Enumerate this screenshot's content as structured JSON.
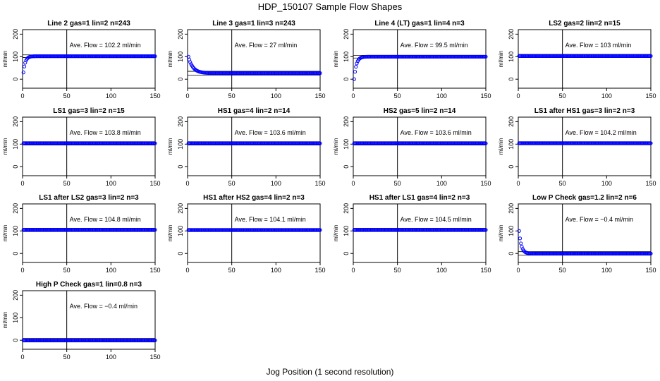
{
  "figure": {
    "title": "HDP_150107  Sample Flow Shapes",
    "xlabel": "Jog Position (1 second resolution)"
  },
  "chart_data": [
    {
      "type": "scatter",
      "title": "Line 2 gas=1 lin=2 n=243",
      "ylabel": "ml/min",
      "xlim": [
        0,
        150
      ],
      "ylim": [
        -40,
        220
      ],
      "xticks": [
        0,
        50,
        100,
        150
      ],
      "yticks": [
        0,
        100,
        200
      ],
      "vline": 50,
      "hlines": [
        96,
        108
      ],
      "annotation": "Ave. Flow = 102.2  ml/min",
      "shape": "ramp",
      "start": 30,
      "plateau": 102,
      "tau": 2.2,
      "n": 150,
      "color": "#0000ff"
    },
    {
      "type": "scatter",
      "title": "Line 3 gas=1 lin=3 n=243",
      "ylabel": "ml/min",
      "xlim": [
        0,
        150
      ],
      "ylim": [
        -40,
        220
      ],
      "xticks": [
        0,
        50,
        100,
        150
      ],
      "yticks": [
        0,
        100,
        200
      ],
      "vline": 50,
      "hlines": [
        18,
        35
      ],
      "annotation": "Ave. Flow = 27  ml/min",
      "shape": "decay",
      "start": 100,
      "plateau": 27,
      "tau": 5,
      "n": 150,
      "color": "#0000ff"
    },
    {
      "type": "scatter",
      "title": "Line 4 (LT) gas=1 lin=4 n=3",
      "ylabel": "ml/min",
      "xlim": [
        0,
        150
      ],
      "ylim": [
        -40,
        220
      ],
      "xticks": [
        0,
        50,
        100,
        150
      ],
      "yticks": [
        0,
        100,
        200
      ],
      "vline": 50,
      "hlines": [
        94,
        106
      ],
      "annotation": "Ave. Flow = 99.5  ml/min",
      "shape": "ramp",
      "start": 0,
      "plateau": 100,
      "tau": 2.5,
      "n": 150,
      "color": "#0000ff"
    },
    {
      "type": "scatter",
      "title": "LS2 gas=2 lin=2 n=15",
      "ylabel": "ml/min",
      "xlim": [
        0,
        150
      ],
      "ylim": [
        -40,
        220
      ],
      "xticks": [
        0,
        50,
        100,
        150
      ],
      "yticks": [
        0,
        100,
        200
      ],
      "vline": 50,
      "hlines": [
        96,
        110
      ],
      "annotation": "Ave. Flow = 103  ml/min",
      "shape": "flat",
      "plateau": 103,
      "n": 150,
      "color": "#0000ff"
    },
    {
      "type": "scatter",
      "title": "LS1 gas=3 lin=2 n=15",
      "ylabel": "ml/min",
      "xlim": [
        0,
        150
      ],
      "ylim": [
        -40,
        220
      ],
      "xticks": [
        0,
        50,
        100,
        150
      ],
      "yticks": [
        0,
        100,
        200
      ],
      "vline": 50,
      "hlines": [
        96,
        111
      ],
      "annotation": "Ave. Flow = 103.8  ml/min",
      "shape": "flat",
      "plateau": 103.8,
      "n": 150,
      "color": "#0000ff"
    },
    {
      "type": "scatter",
      "title": "HS1 gas=4 lin=2 n=14",
      "ylabel": "ml/min",
      "xlim": [
        0,
        150
      ],
      "ylim": [
        -40,
        220
      ],
      "xticks": [
        0,
        50,
        100,
        150
      ],
      "yticks": [
        0,
        100,
        200
      ],
      "vline": 50,
      "hlines": [
        96,
        111
      ],
      "annotation": "Ave. Flow = 103.6  ml/min",
      "shape": "flat",
      "plateau": 103.6,
      "n": 150,
      "color": "#0000ff"
    },
    {
      "type": "scatter",
      "title": "HS2 gas=5 lin=2 n=14",
      "ylabel": "ml/min",
      "xlim": [
        0,
        150
      ],
      "ylim": [
        -40,
        220
      ],
      "xticks": [
        0,
        50,
        100,
        150
      ],
      "yticks": [
        0,
        100,
        200
      ],
      "vline": 50,
      "hlines": [
        96,
        111
      ],
      "annotation": "Ave. Flow = 103.6  ml/min",
      "shape": "flat",
      "plateau": 103.6,
      "n": 150,
      "color": "#0000ff"
    },
    {
      "type": "scatter",
      "title": "LS1 after HS1 gas=3 lin=2 n=3",
      "ylabel": "ml/min",
      "xlim": [
        0,
        150
      ],
      "ylim": [
        -40,
        220
      ],
      "xticks": [
        0,
        50,
        100,
        150
      ],
      "yticks": [
        0,
        100,
        200
      ],
      "vline": 50,
      "hlines": [
        97,
        111
      ],
      "annotation": "Ave. Flow = 104.2  ml/min",
      "shape": "flat",
      "plateau": 104.2,
      "n": 150,
      "color": "#0000ff"
    },
    {
      "type": "scatter",
      "title": "LS1 after LS2 gas=3 lin=2 n=3",
      "ylabel": "ml/min",
      "xlim": [
        0,
        150
      ],
      "ylim": [
        -40,
        220
      ],
      "xticks": [
        0,
        50,
        100,
        150
      ],
      "yticks": [
        0,
        100,
        200
      ],
      "vline": 50,
      "hlines": [
        97,
        112
      ],
      "annotation": "Ave. Flow = 104.8  ml/min",
      "shape": "flat",
      "plateau": 104.8,
      "n": 150,
      "color": "#0000ff"
    },
    {
      "type": "scatter",
      "title": "HS1 after HS2 gas=4 lin=2 n=3",
      "ylabel": "ml/min",
      "xlim": [
        0,
        150
      ],
      "ylim": [
        -40,
        220
      ],
      "xticks": [
        0,
        50,
        100,
        150
      ],
      "yticks": [
        0,
        100,
        200
      ],
      "vline": 50,
      "hlines": [
        97,
        111
      ],
      "annotation": "Ave. Flow = 104.1  ml/min",
      "shape": "flat",
      "plateau": 104.1,
      "n": 150,
      "color": "#0000ff"
    },
    {
      "type": "scatter",
      "title": "HS1 after LS1 gas=4 lin=2 n=3",
      "ylabel": "ml/min",
      "xlim": [
        0,
        150
      ],
      "ylim": [
        -40,
        220
      ],
      "xticks": [
        0,
        50,
        100,
        150
      ],
      "yticks": [
        0,
        100,
        200
      ],
      "vline": 50,
      "hlines": [
        97,
        112
      ],
      "annotation": "Ave. Flow = 104.5  ml/min",
      "shape": "flat",
      "plateau": 104.5,
      "n": 150,
      "color": "#0000ff"
    },
    {
      "type": "scatter",
      "title": "Low P Check gas=1.2 lin=2 n=6",
      "ylabel": "ml/min",
      "xlim": [
        0,
        150
      ],
      "ylim": [
        -40,
        220
      ],
      "xticks": [
        0,
        50,
        100,
        150
      ],
      "yticks": [
        0,
        100,
        200
      ],
      "vline": 50,
      "hlines": [
        -8,
        8
      ],
      "annotation": "Ave. Flow = −0.4  ml/min",
      "shape": "decay",
      "start": 100,
      "plateau": -0.4,
      "tau": 2.5,
      "n": 150,
      "color": "#0000ff"
    },
    {
      "type": "scatter",
      "title": "High P Check gas=1 lin=0.8 n=3",
      "ylabel": "ml/min",
      "xlim": [
        0,
        150
      ],
      "ylim": [
        -40,
        220
      ],
      "xticks": [
        0,
        50,
        100,
        150
      ],
      "yticks": [
        0,
        100,
        200
      ],
      "vline": 50,
      "hlines": [
        -8,
        8
      ],
      "annotation": "Ave. Flow = −0.4  ml/min",
      "shape": "flat",
      "plateau": -0.4,
      "n": 150,
      "color": "#0000ff"
    }
  ]
}
